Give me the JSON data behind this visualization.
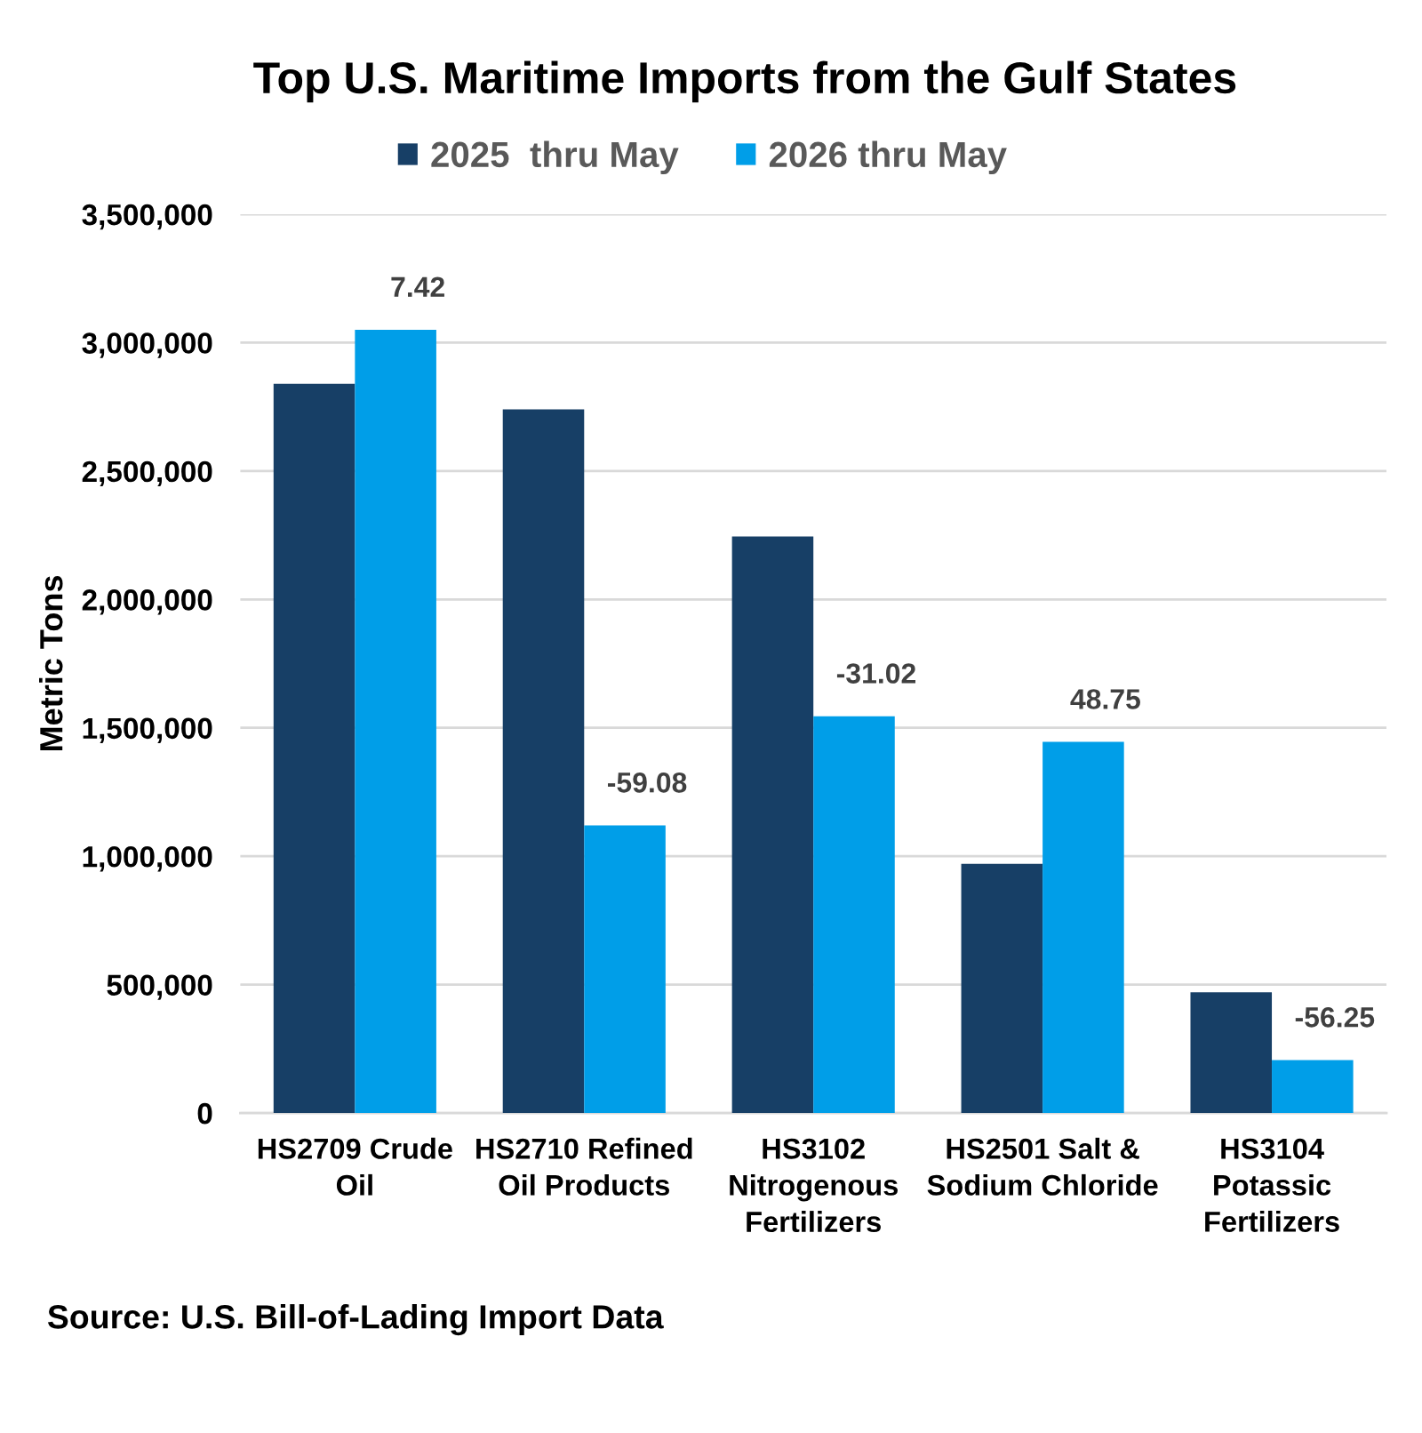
{
  "chart_data": {
    "type": "bar",
    "title": "Top U.S. Maritime Imports from the Gulf States",
    "ylabel": "Metric Tons",
    "categories": [
      "HS2709 Crude\nOil",
      "HS2710 Refined\nOil Products",
      "HS3102\nNitrogenous\nFertilizers",
      "HS2501 Salt &\nSodium Chloride",
      "HS3104\nPotassic\nFertilizers"
    ],
    "series": [
      {
        "name": "2025  thru May",
        "color": "#173f66",
        "values": [
          2840000,
          2740000,
          2245000,
          970000,
          470000
        ]
      },
      {
        "name": "2026 thru May",
        "color": "#009ee8",
        "values": [
          3050000,
          1120000,
          1545000,
          1445000,
          206000
        ]
      }
    ],
    "ylim": [
      0,
      3500000
    ],
    "yticks": [
      0,
      {
        "value": 500000,
        "label": "500,000"
      },
      {
        "value": 1000000,
        "label": "1,000,000"
      },
      {
        "value": 1500000,
        "label": "1,500,000"
      },
      {
        "value": 2000000,
        "label": "2,000,000"
      },
      {
        "value": 2500000,
        "label": "2,500,000"
      },
      {
        "value": 3000000,
        "label": "3,000,000"
      },
      {
        "value": 3500000,
        "label": "3,500,000"
      }
    ],
    "grid": "y",
    "legend": "top",
    "annotations": [
      {
        "text": "7.42",
        "x": "HS2709 Crude\nOil",
        "y": 3050000
      },
      {
        "text": "-59.08",
        "x": "HS2710 Refined\nOil Products",
        "y": 1120000
      },
      {
        "text": "-31.02",
        "x": "HS3102\nNitrogenous\nFertilizers",
        "y": 1545000
      },
      {
        "text": "48.75",
        "x": "HS2501 Salt &\nSodium Chloride",
        "y": 1445000
      },
      {
        "text": "-56.25",
        "x": "HS3104\nPotassic\nFertilizers",
        "y": 206000
      },
      "Source: U.S. Bill-of-Lading Import Data"
    ]
  }
}
